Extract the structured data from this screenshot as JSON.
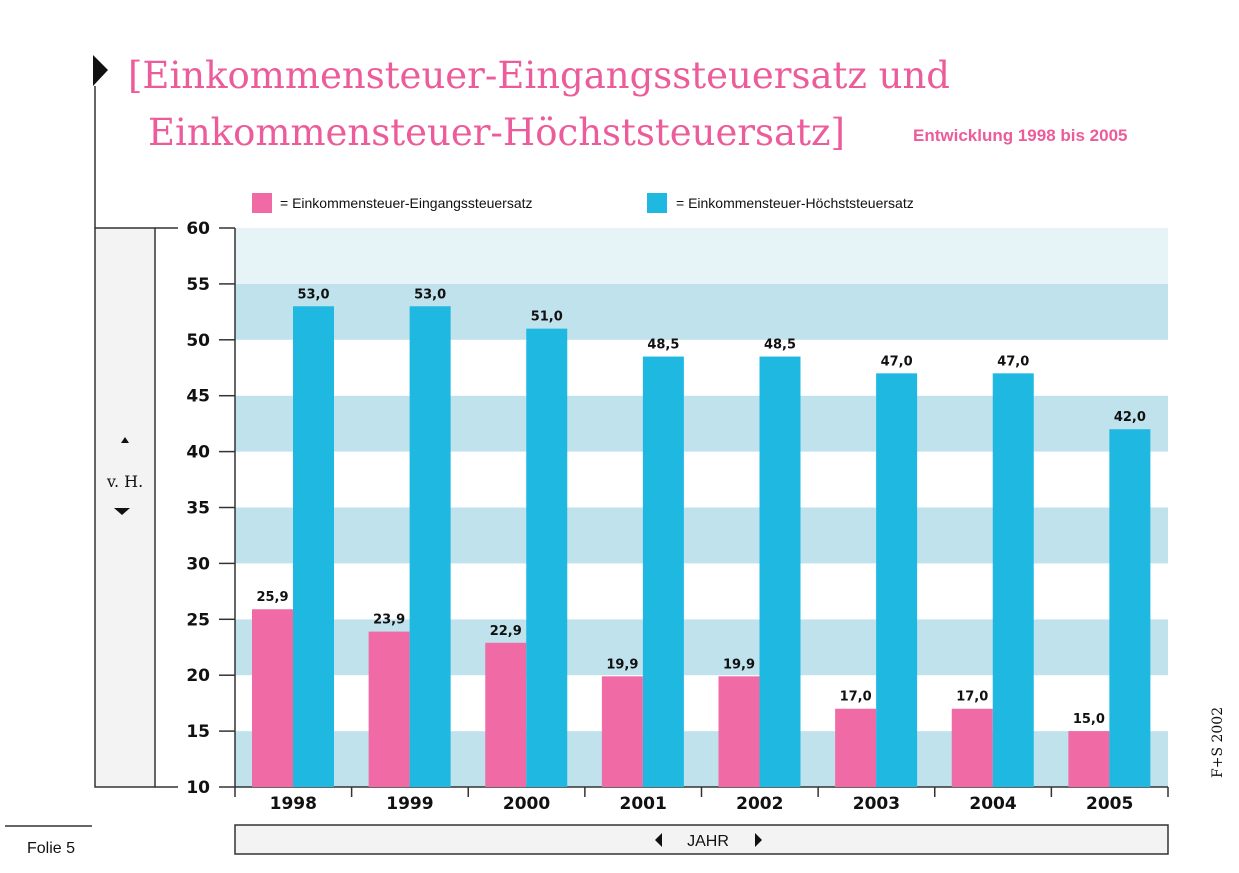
{
  "chart_data": {
    "type": "bar",
    "title_line1": "[Einkommensteuer-Eingangssteuersatz und",
    "title_line2": "Einkommensteuer-Höchststeuersatz]",
    "subtitle": "Entwicklung 1998 bis 2005",
    "xlabel": "JAHR",
    "ylabel": "v. H.",
    "categories": [
      "1998",
      "1999",
      "2000",
      "2001",
      "2002",
      "2003",
      "2004",
      "2005"
    ],
    "series": [
      {
        "name": "= Einkommensteuer-Eingangssteuersatz",
        "color": "#f06ba6",
        "values": [
          25.9,
          23.9,
          22.9,
          19.9,
          19.9,
          17.0,
          17.0,
          15.0
        ],
        "labels": [
          "25,9",
          "23,9",
          "22,9",
          "19,9",
          "19,9",
          "17,0",
          "17,0",
          "15,0"
        ]
      },
      {
        "name": "= Einkommensteuer-Höchststeuersatz",
        "color": "#1fb8e0",
        "values": [
          53.0,
          53.0,
          51.0,
          48.5,
          48.5,
          47.0,
          47.0,
          42.0
        ],
        "labels": [
          "53,0",
          "53,0",
          "51,0",
          "48,5",
          "48,5",
          "47,0",
          "47,0",
          "42,0"
        ]
      }
    ],
    "ylim": [
      10,
      60
    ],
    "yticks": [
      10,
      15,
      20,
      25,
      30,
      35,
      40,
      45,
      50,
      55,
      60
    ],
    "legend_position": "top",
    "grid": "alternating horizontal bands"
  },
  "footer": {
    "slide": "Folie 5",
    "credit": "F+S 2002"
  }
}
